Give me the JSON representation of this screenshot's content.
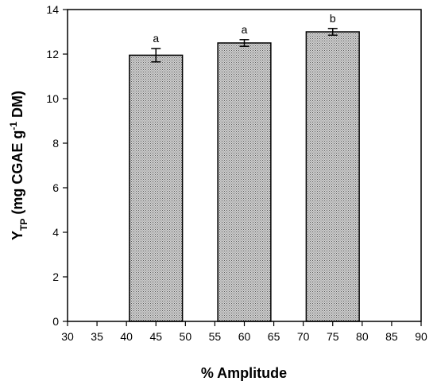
{
  "chart_data": {
    "type": "bar",
    "x": [
      45,
      60,
      75
    ],
    "values": [
      11.95,
      12.5,
      13.0
    ],
    "errors": [
      0.3,
      0.15,
      0.15
    ],
    "bar_labels": [
      "a",
      "a",
      "b"
    ],
    "bar_width": 9,
    "xlim": [
      30,
      90
    ],
    "ylim": [
      0,
      14
    ],
    "x_ticks": [
      30,
      35,
      40,
      45,
      50,
      55,
      60,
      65,
      70,
      75,
      80,
      85,
      90
    ],
    "y_ticks": [
      0,
      2,
      4,
      6,
      8,
      10,
      12,
      14
    ],
    "xlabel": "% Amplitude",
    "ylabel": {
      "main": "Y",
      "sub": "TP",
      "text1": " (mg CGAE g",
      "sup": "-1",
      "text2": " DM)"
    },
    "grid": false,
    "legend": "none",
    "colors": {
      "bar_fill": "#d0d0d0",
      "bar_dots": "#5a5a5a",
      "stroke": "#000000"
    }
  }
}
